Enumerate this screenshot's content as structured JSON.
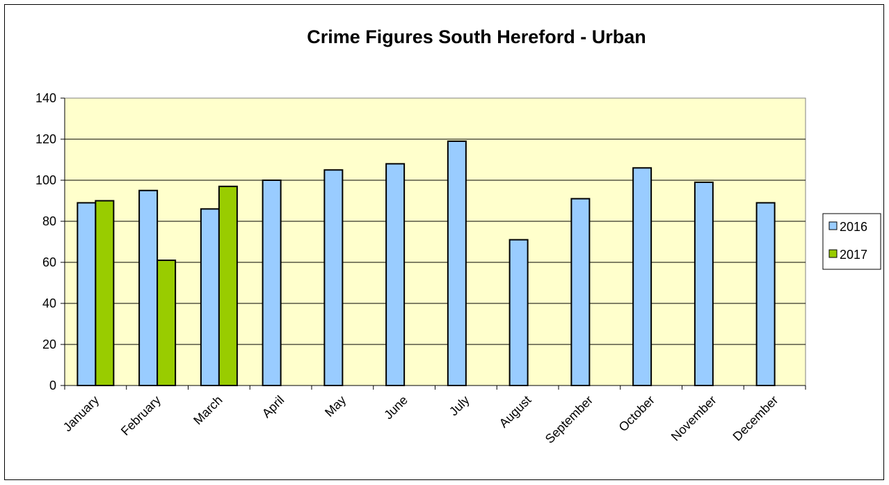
{
  "chart_data": {
    "type": "bar",
    "title": "Crime Figures South Hereford - Urban",
    "xlabel": "",
    "ylabel": "",
    "categories": [
      "January",
      "February",
      "March",
      "April",
      "May",
      "June",
      "July",
      "August",
      "September",
      "October",
      "November",
      "December"
    ],
    "series": [
      {
        "name": "2016",
        "color": "#99ccff",
        "values": [
          89,
          95,
          86,
          100,
          105,
          108,
          119,
          71,
          91,
          106,
          99,
          89
        ]
      },
      {
        "name": "2017",
        "color": "#99cc00",
        "values": [
          90,
          61,
          97,
          null,
          null,
          null,
          null,
          null,
          null,
          null,
          null,
          null
        ]
      }
    ],
    "ylim": [
      0,
      140
    ],
    "yticks": [
      0,
      20,
      40,
      60,
      80,
      100,
      120,
      140
    ],
    "grid": true,
    "plot_background": "#ffffcc",
    "legend_position": "right"
  }
}
